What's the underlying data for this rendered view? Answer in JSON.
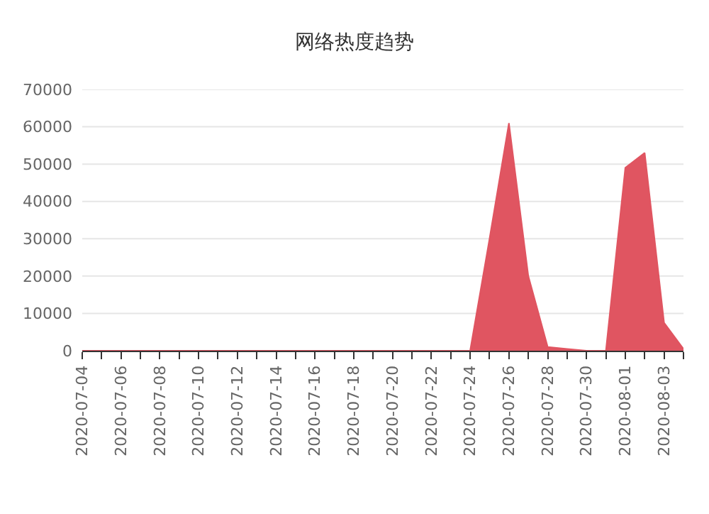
{
  "chart_data": {
    "type": "area",
    "title": "网络热度趋势",
    "categories": [
      "2020-07-04",
      null,
      "2020-07-06",
      null,
      "2020-07-08",
      null,
      "2020-07-10",
      null,
      "2020-07-12",
      null,
      "2020-07-14",
      null,
      "2020-07-16",
      null,
      "2020-07-18",
      null,
      "2020-07-20",
      null,
      "2020-07-22",
      null,
      "2020-07-24",
      null,
      "2020-07-26",
      null,
      "2020-07-28",
      null,
      "2020-07-30",
      null,
      "2020-08-01",
      null,
      "2020-08-03",
      null
    ],
    "series": [
      {
        "color": "#e05561",
        "values": [
          0,
          0,
          0,
          0,
          0,
          0,
          0,
          0,
          0,
          0,
          0,
          0,
          0,
          0,
          0,
          0,
          0,
          0,
          0,
          0,
          0,
          30000,
          61000,
          20000,
          1000,
          500,
          0,
          0,
          49000,
          53000,
          7500,
          500
        ]
      }
    ],
    "ylim": [
      0,
      70000
    ],
    "yticks": [
      0,
      10000,
      20000,
      30000,
      40000,
      50000,
      60000,
      70000
    ],
    "grid": "y"
  }
}
